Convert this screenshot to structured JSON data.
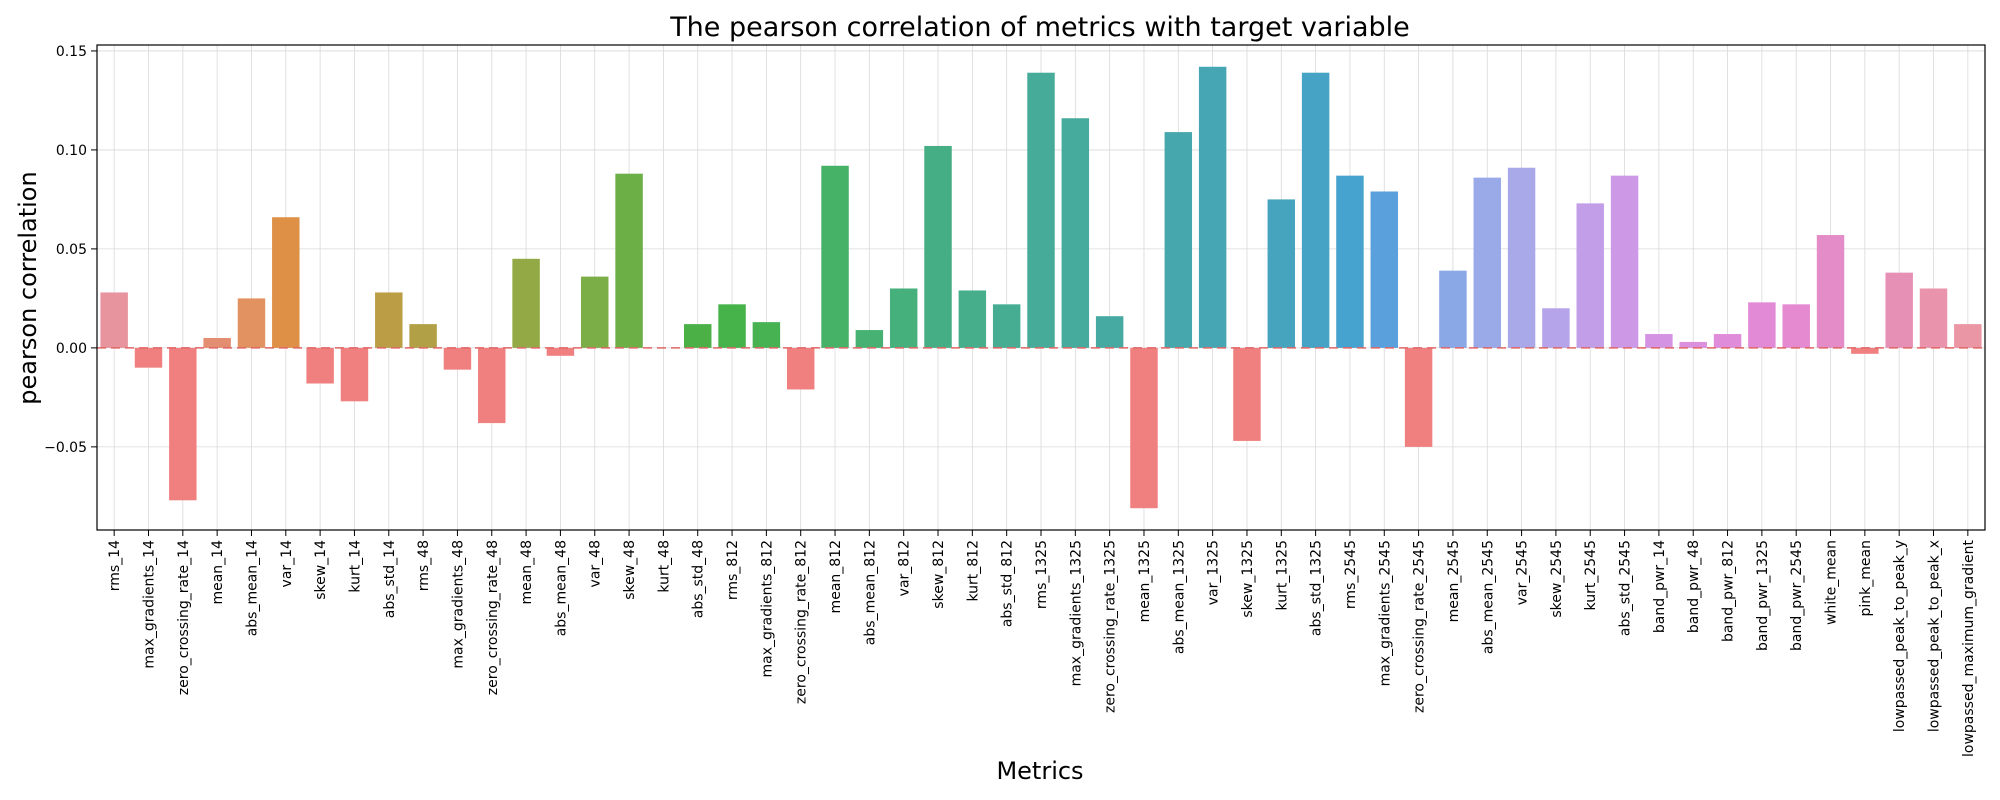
{
  "chart_data": {
    "type": "bar",
    "title": "The pearson correlation of metrics with target variable",
    "xlabel": "Metrics",
    "ylabel": "pearson correlation",
    "ylim": [
      -0.092,
      0.153
    ],
    "yticks": [
      -0.05,
      0.0,
      0.05,
      0.1,
      0.15
    ],
    "ytick_labels": [
      "−0.05",
      "0.00",
      "0.05",
      "0.10",
      "0.15"
    ],
    "grid": true,
    "reference_line": {
      "y": 0.0,
      "style": "dashed",
      "color": "#e06666"
    },
    "negative_color": "#f07f7f",
    "categories": [
      "rms_14",
      "max_gradients_14",
      "zero_crossing_rate_14",
      "mean_14",
      "abs_mean_14",
      "var_14",
      "skew_14",
      "kurt_14",
      "abs_std_14",
      "rms_48",
      "max_gradients_48",
      "zero_crossing_rate_48",
      "mean_48",
      "abs_mean_48",
      "var_48",
      "skew_48",
      "kurt_48",
      "abs_std_48",
      "rms_812",
      "max_gradients_812",
      "zero_crossing_rate_812",
      "mean_812",
      "abs_mean_812",
      "var_812",
      "skew_812",
      "kurt_812",
      "abs_std_812",
      "rms_1325",
      "max_gradients_1325",
      "zero_crossing_rate_1325",
      "mean_1325",
      "abs_mean_1325",
      "var_1325",
      "skew_1325",
      "kurt_1325",
      "abs_std_1325",
      "rms_2545",
      "max_gradients_2545",
      "zero_crossing_rate_2545",
      "mean_2545",
      "abs_mean_2545",
      "var_2545",
      "skew_2545",
      "kurt_2545",
      "abs_std_2545",
      "band_pwr_14",
      "band_pwr_48",
      "band_pwr_812",
      "band_pwr_1325",
      "band_pwr_2545",
      "white_mean",
      "pink_mean",
      "lowpassed_peak_to_peak_y",
      "lowpassed_peak_to_peak_x",
      "lowpassed_maximum_gradient"
    ],
    "values": [
      0.028,
      -0.01,
      -0.077,
      0.005,
      0.025,
      0.066,
      -0.018,
      -0.027,
      0.028,
      0.012,
      -0.011,
      -0.038,
      0.045,
      -0.004,
      0.036,
      0.088,
      0.0,
      0.012,
      0.022,
      0.013,
      -0.021,
      0.092,
      0.009,
      0.03,
      0.102,
      0.029,
      0.022,
      0.139,
      0.116,
      0.016,
      -0.081,
      0.109,
      0.142,
      -0.047,
      0.075,
      0.139,
      0.087,
      0.079,
      -0.05,
      0.039,
      0.086,
      0.091,
      0.02,
      0.073,
      0.087,
      0.007,
      0.003,
      0.007,
      0.023,
      0.022,
      0.057,
      -0.003,
      0.038,
      0.03,
      0.012
    ],
    "colors": [
      "#e8949e",
      "#e78d86",
      "#e58a7e",
      "#e48e71",
      "#e29160",
      "#de9146",
      "#cf9646",
      "#c49a46",
      "#bb9d46",
      "#b2a046",
      "#a8a346",
      "#9da646",
      "#93a946",
      "#88ac46",
      "#7bae46",
      "#6caf46",
      "#5cb046",
      "#4bb146",
      "#46b24a",
      "#46b252",
      "#46b55a",
      "#46b268",
      "#46b172",
      "#46b07c",
      "#46ae84",
      "#46ae8b",
      "#46ad92",
      "#46ab98",
      "#46aa9d",
      "#46a9a2",
      "#46a8a7",
      "#46a7ad",
      "#46a6b3",
      "#46a5b8",
      "#46a4be",
      "#46a3c5",
      "#46a2cf",
      "#5aa0dc",
      "#74a3e0",
      "#8aa7e6",
      "#9aa9e8",
      "#a9a8e9",
      "#b5a4e9",
      "#c29ee8",
      "#cd98e6",
      "#d594e3",
      "#db90df",
      "#df8ddb",
      "#e28ad6",
      "#e58ad1",
      "#e48cc8",
      "#e58ebe",
      "#e790b5",
      "#e993ac",
      "#ea96a4"
    ]
  }
}
